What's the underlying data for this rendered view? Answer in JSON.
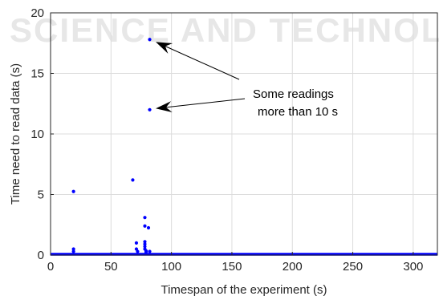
{
  "watermark": "SCIENCE AND TECHNOLOGY",
  "chart_data": {
    "type": "scatter",
    "xlabel": "Timespan of the experiment (s)",
    "ylabel": "Time need to read data (s)",
    "xlim": [
      0,
      320
    ],
    "ylim": [
      0,
      20
    ],
    "xticks": [
      0,
      50,
      100,
      150,
      200,
      250,
      300
    ],
    "yticks": [
      0,
      5,
      10,
      15,
      20
    ],
    "grid": true,
    "point_color": "#0000ff",
    "baseline": {
      "x_start": 0,
      "x_end": 320,
      "y": 0.05
    },
    "points": [
      {
        "x": 19,
        "y": 5.25
      },
      {
        "x": 19,
        "y": 0.5
      },
      {
        "x": 19,
        "y": 0.3
      },
      {
        "x": 68,
        "y": 6.2
      },
      {
        "x": 71,
        "y": 1.0
      },
      {
        "x": 71,
        "y": 0.5
      },
      {
        "x": 72,
        "y": 0.3
      },
      {
        "x": 78,
        "y": 3.1
      },
      {
        "x": 78,
        "y": 2.4
      },
      {
        "x": 78,
        "y": 1.1
      },
      {
        "x": 78,
        "y": 0.9
      },
      {
        "x": 78,
        "y": 0.7
      },
      {
        "x": 78,
        "y": 0.5
      },
      {
        "x": 79,
        "y": 0.35
      },
      {
        "x": 79,
        "y": 0.25
      },
      {
        "x": 81,
        "y": 2.25
      },
      {
        "x": 82,
        "y": 0.3
      },
      {
        "x": 82,
        "y": 17.8
      },
      {
        "x": 82,
        "y": 12.0
      }
    ],
    "annotation": {
      "lines": [
        "Some readings",
        "more than 10 s"
      ],
      "arrows_to": [
        {
          "x": 83,
          "y": 17.6
        },
        {
          "x": 83,
          "y": 12.1
        }
      ]
    }
  }
}
